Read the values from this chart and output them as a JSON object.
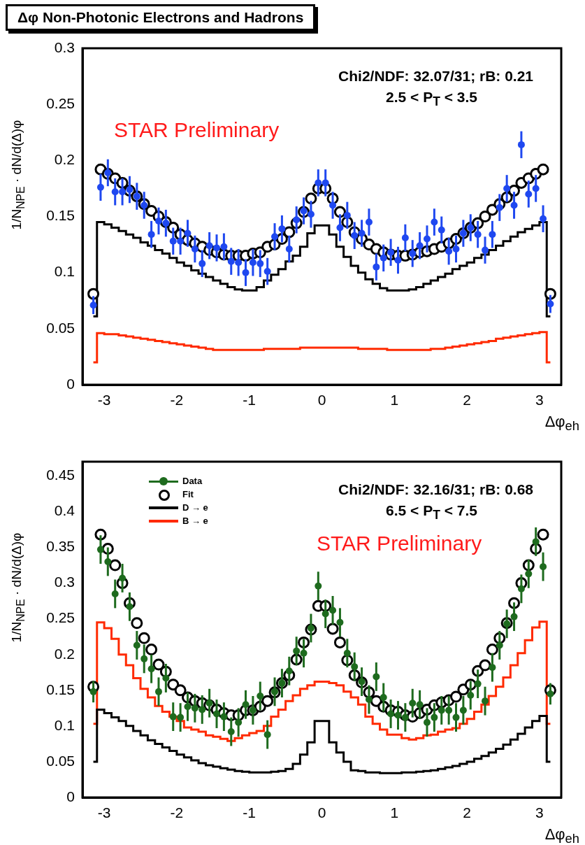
{
  "chart_data": [
    {
      "type": "scatter",
      "title": "Δφ Non-Photonic Electrons and Hadrons",
      "xlabel": "Δφ$_{eh}$",
      "ylabel": "1/N$_{NPE}$ · dN/d(Δ)φ",
      "annotations": [
        "Chi2/NDF: 32.07/31; rB: 0.21",
        "2.5 < P$_{T}$ < 3.5",
        "STAR Preliminary"
      ],
      "xlim": [
        -3.3,
        3.3
      ],
      "xticks": [
        -3,
        -2,
        -1,
        0,
        1,
        2,
        3
      ],
      "ylim": [
        0,
        0.3
      ],
      "yticks": [
        0,
        0.05,
        0.1,
        0.15,
        0.2,
        0.25,
        0.3
      ],
      "x": [
        -3.15,
        -3.05,
        -2.95,
        -2.85,
        -2.75,
        -2.65,
        -2.55,
        -2.45,
        -2.35,
        -2.25,
        -2.15,
        -2.05,
        -1.95,
        -1.85,
        -1.75,
        -1.65,
        -1.55,
        -1.45,
        -1.35,
        -1.25,
        -1.15,
        -1.05,
        -0.95,
        -0.85,
        -0.75,
        -0.65,
        -0.55,
        -0.45,
        -0.35,
        -0.25,
        -0.15,
        -0.05,
        0.05,
        0.15,
        0.25,
        0.35,
        0.45,
        0.55,
        0.65,
        0.75,
        0.85,
        0.95,
        1.05,
        1.15,
        1.25,
        1.35,
        1.45,
        1.55,
        1.65,
        1.75,
        1.85,
        1.95,
        2.05,
        2.15,
        2.25,
        2.35,
        2.45,
        2.55,
        2.65,
        2.75,
        2.85,
        2.95,
        3.05,
        3.15
      ],
      "series": [
        {
          "type": "scatter",
          "color": "#1f48f0",
          "values": [
            0.071,
            0.176,
            0.189,
            0.172,
            0.172,
            0.174,
            0.168,
            0.16,
            0.134,
            0.146,
            0.144,
            0.128,
            0.128,
            0.135,
            0.121,
            0.108,
            0.124,
            0.122,
            0.123,
            0.11,
            0.109,
            0.1,
            0.109,
            0.108,
            0.101,
            0.132,
            0.139,
            0.121,
            0.147,
            0.155,
            0.152,
            0.18,
            0.18,
            0.16,
            0.14,
            0.151,
            0.133,
            0.135,
            0.145,
            0.105,
            0.113,
            0.118,
            0.111,
            0.131,
            0.117,
            0.124,
            0.13,
            0.145,
            0.138,
            0.119,
            0.121,
            0.135,
            0.14,
            0.134,
            0.12,
            0.134,
            0.158,
            0.175,
            0.16,
            0.214,
            0.17,
            0.175,
            0.148,
            0.072
          ],
          "errors": [
            0.008,
            0.012,
            0.012,
            0.012,
            0.012,
            0.012,
            0.012,
            0.012,
            0.012,
            0.012,
            0.012,
            0.012,
            0.012,
            0.012,
            0.012,
            0.012,
            0.012,
            0.012,
            0.012,
            0.012,
            0.012,
            0.012,
            0.012,
            0.012,
            0.012,
            0.012,
            0.012,
            0.012,
            0.012,
            0.012,
            0.012,
            0.012,
            0.012,
            0.012,
            0.012,
            0.012,
            0.012,
            0.012,
            0.012,
            0.012,
            0.012,
            0.012,
            0.012,
            0.012,
            0.012,
            0.012,
            0.012,
            0.012,
            0.012,
            0.012,
            0.012,
            0.012,
            0.012,
            0.012,
            0.012,
            0.012,
            0.012,
            0.012,
            0.012,
            0.012,
            0.012,
            0.012,
            0.012,
            0.008
          ]
        },
        {
          "type": "scatter",
          "color": "#000000",
          "values": [
            0.081,
            0.192,
            0.188,
            0.184,
            0.18,
            0.173,
            0.168,
            0.161,
            0.155,
            0.15,
            0.145,
            0.14,
            0.134,
            0.129,
            0.126,
            0.123,
            0.12,
            0.118,
            0.116,
            0.115,
            0.115,
            0.115,
            0.117,
            0.118,
            0.123,
            0.125,
            0.13,
            0.136,
            0.144,
            0.154,
            0.166,
            0.175,
            0.175,
            0.166,
            0.154,
            0.145,
            0.136,
            0.13,
            0.125,
            0.121,
            0.118,
            0.116,
            0.115,
            0.115,
            0.116,
            0.118,
            0.119,
            0.121,
            0.123,
            0.126,
            0.13,
            0.135,
            0.14,
            0.144,
            0.15,
            0.156,
            0.161,
            0.167,
            0.173,
            0.18,
            0.184,
            0.188,
            0.192,
            0.081
          ]
        },
        {
          "type": "step",
          "color": "#000000",
          "values": [
            0.061,
            0.145,
            0.143,
            0.14,
            0.137,
            0.134,
            0.131,
            0.127,
            0.124,
            0.12,
            0.117,
            0.113,
            0.109,
            0.106,
            0.102,
            0.099,
            0.096,
            0.093,
            0.09,
            0.087,
            0.085,
            0.084,
            0.084,
            0.087,
            0.093,
            0.098,
            0.103,
            0.11,
            0.115,
            0.123,
            0.135,
            0.142,
            0.142,
            0.134,
            0.123,
            0.114,
            0.106,
            0.1,
            0.094,
            0.09,
            0.086,
            0.084,
            0.084,
            0.084,
            0.085,
            0.087,
            0.09,
            0.093,
            0.096,
            0.099,
            0.103,
            0.106,
            0.109,
            0.113,
            0.116,
            0.12,
            0.124,
            0.128,
            0.132,
            0.136,
            0.139,
            0.142,
            0.145,
            0.061
          ]
        },
        {
          "type": "step",
          "color": "#ff2a00",
          "values": [
            0.02,
            0.046,
            0.045,
            0.045,
            0.044,
            0.043,
            0.042,
            0.041,
            0.04,
            0.039,
            0.038,
            0.037,
            0.036,
            0.035,
            0.034,
            0.033,
            0.032,
            0.031,
            0.031,
            0.031,
            0.031,
            0.031,
            0.031,
            0.031,
            0.032,
            0.032,
            0.032,
            0.032,
            0.032,
            0.033,
            0.033,
            0.033,
            0.033,
            0.033,
            0.033,
            0.033,
            0.033,
            0.032,
            0.032,
            0.032,
            0.032,
            0.031,
            0.031,
            0.031,
            0.031,
            0.031,
            0.031,
            0.032,
            0.032,
            0.033,
            0.034,
            0.035,
            0.036,
            0.037,
            0.038,
            0.039,
            0.041,
            0.042,
            0.043,
            0.044,
            0.045,
            0.046,
            0.047,
            0.02
          ]
        }
      ]
    },
    {
      "type": "scatter",
      "xlabel": "Δφ$_{eh}$",
      "ylabel": "1/N$_{NPE}$ · dN/d(Δ)φ",
      "annotations": [
        "Chi2/NDF: 32.16/31; rB: 0.68",
        "6.5 < P$_{T}$ < 7.5",
        "STAR Preliminary"
      ],
      "legend": "top left",
      "xlim": [
        -3.3,
        3.3
      ],
      "xticks": [
        -3,
        -2,
        -1,
        0,
        1,
        2,
        3
      ],
      "ylim": [
        0,
        0.47
      ],
      "yticks": [
        0,
        0.05,
        0.1,
        0.15,
        0.2,
        0.25,
        0.3,
        0.35,
        0.4,
        0.45
      ],
      "x": [
        -3.15,
        -3.05,
        -2.95,
        -2.85,
        -2.75,
        -2.65,
        -2.55,
        -2.45,
        -2.35,
        -2.25,
        -2.15,
        -2.05,
        -1.95,
        -1.85,
        -1.75,
        -1.65,
        -1.55,
        -1.45,
        -1.35,
        -1.25,
        -1.15,
        -1.05,
        -0.95,
        -0.85,
        -0.75,
        -0.65,
        -0.55,
        -0.45,
        -0.35,
        -0.25,
        -0.15,
        -0.05,
        0.05,
        0.15,
        0.25,
        0.35,
        0.45,
        0.55,
        0.65,
        0.75,
        0.85,
        0.95,
        1.05,
        1.15,
        1.25,
        1.35,
        1.45,
        1.55,
        1.65,
        1.75,
        1.85,
        1.95,
        2.05,
        2.15,
        2.25,
        2.35,
        2.45,
        2.55,
        2.65,
        2.75,
        2.85,
        2.95,
        3.05,
        3.15
      ],
      "series": [
        {
          "name": "Data",
          "type": "scatter",
          "color": "#1e6b1e",
          "values": [
            0.148,
            0.347,
            0.33,
            0.285,
            0.307,
            0.267,
            0.213,
            0.194,
            0.18,
            0.148,
            0.167,
            0.113,
            0.112,
            0.127,
            0.125,
            0.123,
            0.132,
            0.117,
            0.113,
            0.092,
            0.105,
            0.13,
            0.122,
            0.142,
            0.088,
            0.148,
            0.16,
            0.177,
            0.205,
            0.202,
            0.237,
            0.296,
            0.257,
            0.262,
            0.245,
            0.202,
            0.183,
            0.162,
            0.137,
            0.169,
            0.14,
            0.117,
            0.115,
            0.112,
            0.132,
            0.13,
            0.105,
            0.112,
            0.122,
            0.122,
            0.112,
            0.122,
            0.143,
            0.159,
            0.135,
            0.182,
            0.213,
            0.243,
            0.253,
            0.292,
            0.313,
            0.358,
            0.323,
            0.145
          ],
          "errors": [
            0.015,
            0.02,
            0.02,
            0.02,
            0.02,
            0.02,
            0.02,
            0.02,
            0.02,
            0.02,
            0.02,
            0.02,
            0.02,
            0.02,
            0.02,
            0.02,
            0.02,
            0.02,
            0.02,
            0.02,
            0.02,
            0.02,
            0.02,
            0.02,
            0.02,
            0.02,
            0.02,
            0.02,
            0.02,
            0.02,
            0.02,
            0.02,
            0.02,
            0.02,
            0.02,
            0.02,
            0.02,
            0.02,
            0.02,
            0.02,
            0.02,
            0.02,
            0.02,
            0.02,
            0.02,
            0.02,
            0.02,
            0.02,
            0.02,
            0.02,
            0.02,
            0.02,
            0.02,
            0.02,
            0.02,
            0.02,
            0.02,
            0.02,
            0.02,
            0.02,
            0.02,
            0.02,
            0.02,
            0.015
          ]
        },
        {
          "name": "Fit",
          "type": "scatter",
          "color": "#000000",
          "values": [
            0.155,
            0.368,
            0.348,
            0.325,
            0.3,
            0.272,
            0.244,
            0.223,
            0.207,
            0.186,
            0.176,
            0.158,
            0.15,
            0.14,
            0.135,
            0.132,
            0.129,
            0.123,
            0.118,
            0.115,
            0.115,
            0.122,
            0.122,
            0.127,
            0.135,
            0.147,
            0.16,
            0.171,
            0.193,
            0.217,
            0.235,
            0.268,
            0.268,
            0.236,
            0.217,
            0.192,
            0.171,
            0.161,
            0.147,
            0.135,
            0.127,
            0.122,
            0.12,
            0.115,
            0.113,
            0.118,
            0.123,
            0.129,
            0.133,
            0.136,
            0.141,
            0.151,
            0.158,
            0.177,
            0.185,
            0.207,
            0.223,
            0.244,
            0.272,
            0.3,
            0.325,
            0.348,
            0.368,
            0.15
          ]
        },
        {
          "name": "D → e",
          "type": "step",
          "color": "#000000",
          "values": [
            0.05,
            0.123,
            0.118,
            0.112,
            0.107,
            0.1,
            0.093,
            0.087,
            0.08,
            0.075,
            0.07,
            0.065,
            0.06,
            0.056,
            0.052,
            0.048,
            0.045,
            0.043,
            0.041,
            0.039,
            0.037,
            0.036,
            0.035,
            0.035,
            0.035,
            0.036,
            0.037,
            0.04,
            0.047,
            0.06,
            0.077,
            0.107,
            0.107,
            0.077,
            0.063,
            0.05,
            0.038,
            0.037,
            0.035,
            0.035,
            0.034,
            0.034,
            0.034,
            0.035,
            0.035,
            0.036,
            0.037,
            0.038,
            0.04,
            0.042,
            0.044,
            0.047,
            0.05,
            0.054,
            0.058,
            0.063,
            0.068,
            0.074,
            0.081,
            0.089,
            0.098,
            0.107,
            0.114,
            0.05
          ]
        },
        {
          "name": "B → e",
          "type": "step",
          "color": "#ff2a00",
          "values": [
            0.103,
            0.245,
            0.237,
            0.222,
            0.2,
            0.185,
            0.167,
            0.152,
            0.14,
            0.128,
            0.12,
            0.113,
            0.107,
            0.098,
            0.095,
            0.092,
            0.087,
            0.085,
            0.082,
            0.079,
            0.083,
            0.087,
            0.09,
            0.093,
            0.1,
            0.113,
            0.123,
            0.135,
            0.143,
            0.152,
            0.157,
            0.162,
            0.162,
            0.16,
            0.157,
            0.148,
            0.14,
            0.13,
            0.113,
            0.103,
            0.095,
            0.088,
            0.088,
            0.083,
            0.081,
            0.083,
            0.087,
            0.088,
            0.092,
            0.095,
            0.097,
            0.103,
            0.11,
            0.12,
            0.13,
            0.142,
            0.155,
            0.168,
            0.185,
            0.202,
            0.22,
            0.238,
            0.246,
            0.103
          ]
        }
      ]
    }
  ]
}
